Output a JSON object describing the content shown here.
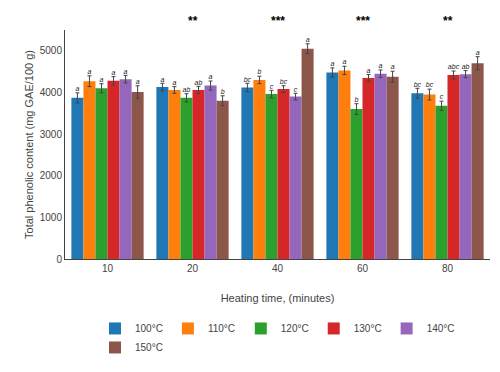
{
  "chart_data": {
    "type": "bar",
    "xlabel": "Heating time, (minutes)",
    "ylabel": "Total phenolic content (mg GAE/100 g)",
    "categories": [
      "10",
      "20",
      "40",
      "60",
      "80"
    ],
    "series": [
      {
        "name": "100°C",
        "values": [
          3870,
          4130,
          4120,
          4480,
          3980
        ],
        "errors": [
          120,
          90,
          100,
          110,
          120
        ],
        "labels": [
          "a",
          "a",
          "bc",
          "a",
          "bc"
        ]
      },
      {
        "name": "110°C",
        "values": [
          4270,
          4060,
          4300,
          4530,
          3950
        ],
        "errors": [
          130,
          80,
          90,
          100,
          130
        ],
        "labels": [
          "a",
          "a",
          "b",
          "a",
          "bc"
        ]
      },
      {
        "name": "120°C",
        "values": [
          4100,
          3870,
          3960,
          3600,
          3680
        ],
        "errors": [
          110,
          100,
          90,
          130,
          110
        ],
        "labels": [
          "a",
          "ab",
          "c",
          "b",
          "c"
        ]
      },
      {
        "name": "130°C",
        "values": [
          4280,
          4060,
          4080,
          4350,
          4420
        ],
        "errors": [
          100,
          85,
          80,
          80,
          95
        ],
        "labels": [
          "a",
          "ab",
          "bc",
          "a",
          "abc"
        ]
      },
      {
        "name": "140°C",
        "values": [
          4320,
          4165,
          3900,
          4450,
          4440
        ],
        "errors": [
          90,
          110,
          80,
          90,
          85
        ],
        "labels": [
          "a",
          "a",
          "c",
          "a",
          "ab"
        ]
      },
      {
        "name": "150°C",
        "values": [
          4010,
          3800,
          5050,
          4380,
          4700
        ],
        "errors": [
          150,
          120,
          120,
          130,
          160
        ],
        "labels": [
          "a",
          "b",
          "a",
          "a",
          "a"
        ]
      }
    ],
    "annotations": [
      {
        "category": "20",
        "text": "**"
      },
      {
        "category": "40",
        "text": "***"
      },
      {
        "category": "60",
        "text": "***"
      },
      {
        "category": "80",
        "text": "**"
      }
    ],
    "ylim": [
      0,
      5500
    ],
    "yticks": [
      0,
      1000,
      2000,
      3000,
      4000,
      5000
    ],
    "grid": false,
    "legend": "bottom"
  }
}
